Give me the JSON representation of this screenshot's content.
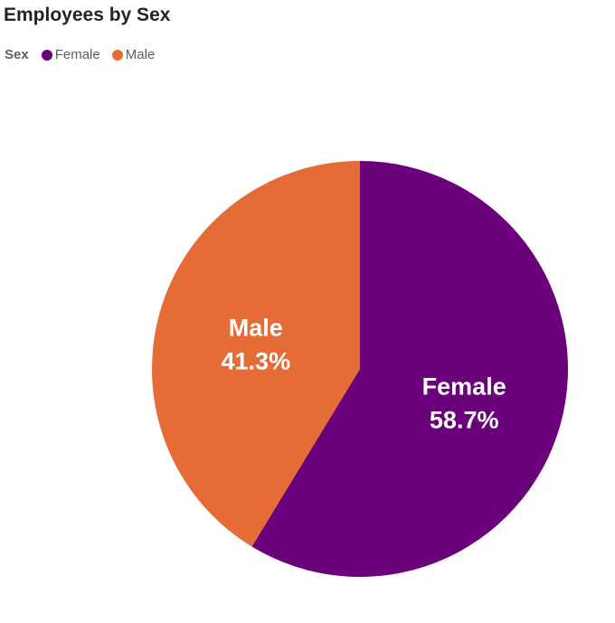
{
  "chart_data": {
    "type": "pie",
    "title": "Employees by Sex",
    "legend_title": "Sex",
    "legend_position": "top-left",
    "categories": [
      "Female",
      "Male"
    ],
    "values": [
      58.7,
      41.3
    ],
    "value_labels": [
      "58.7%",
      "41.3%"
    ],
    "unit": "%",
    "colors": [
      "#6B007B",
      "#E66C37"
    ],
    "start_angle_deg": 0,
    "direction": "clockwise",
    "slice_label_color": "#FFFFFF",
    "title_color": "#252423",
    "legend_text_color": "#605E5C",
    "background_color": "#FFFFFF"
  }
}
